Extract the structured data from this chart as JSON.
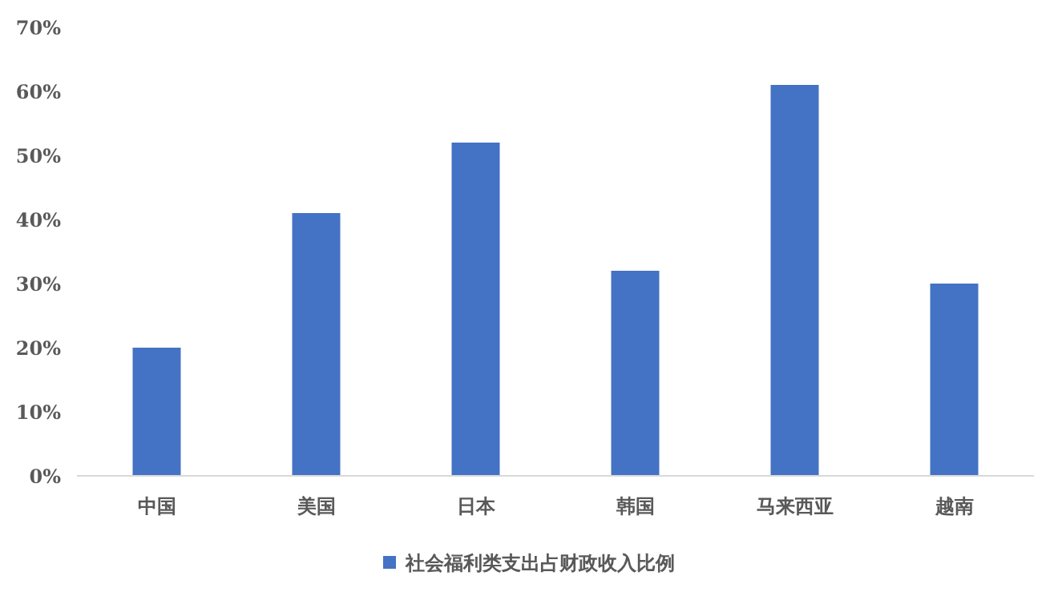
{
  "chart_data": {
    "type": "bar",
    "categories": [
      "中国",
      "美国",
      "日本",
      "韩国",
      "马来西亚",
      "越南"
    ],
    "series": [
      {
        "name": "社会福利类支出占财政收入比例",
        "color": "#4472c4",
        "values": [
          20,
          41,
          52,
          32,
          61,
          30
        ]
      }
    ],
    "ylim": [
      0,
      70
    ],
    "yticks": [
      {
        "value": 0,
        "label": "0%"
      },
      {
        "value": 10,
        "label": "10%"
      },
      {
        "value": 20,
        "label": "20%"
      },
      {
        "value": 30,
        "label": "30%"
      },
      {
        "value": 40,
        "label": "40%"
      },
      {
        "value": 50,
        "label": "50%"
      },
      {
        "value": 60,
        "label": "60%"
      },
      {
        "value": 70,
        "label": "70%"
      }
    ],
    "legend": "bottom"
  }
}
